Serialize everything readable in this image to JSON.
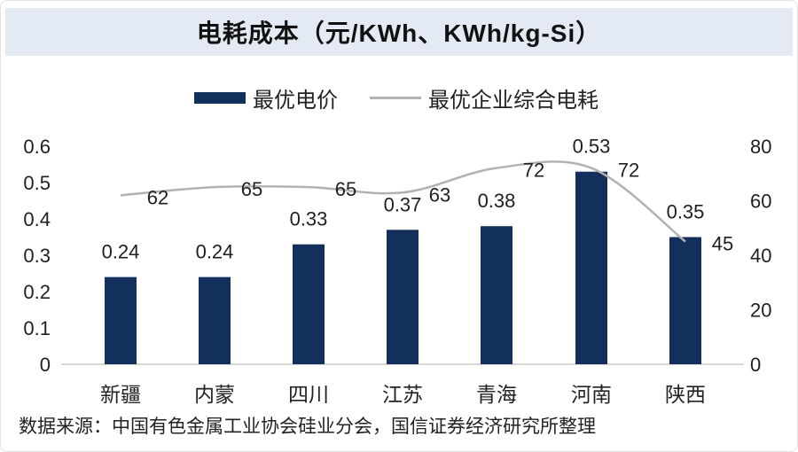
{
  "figure": {
    "title": "电耗成本（元/KWh、KWh/kg-Si）",
    "source_note": "数据来源：中国有色金属工业协会硅业分会，国信证券经济研究所整理"
  },
  "legend": [
    {
      "label": "最优电价",
      "marker": "bar-swatch",
      "color": "#13305c"
    },
    {
      "label": "最优企业综合电耗",
      "marker": "line-swatch",
      "color": "#b3b2b2"
    }
  ],
  "colors": {
    "bar": "#13305c",
    "line": "#b3b2b2",
    "title_band": "#e3eaf4",
    "axis_line": "#cccccc",
    "label_text": "#1f1f1f"
  },
  "chart_data": {
    "type": "bar",
    "title": "电耗成本（元/KWh、KWh/kg-Si）",
    "categories": [
      "新疆",
      "内蒙",
      "四川",
      "江苏",
      "青海",
      "河南",
      "陕西"
    ],
    "series": [
      {
        "name": "最优电价",
        "type": "bar",
        "axis": "left",
        "values": [
          0.24,
          0.24,
          0.33,
          0.37,
          0.38,
          0.53,
          0.35
        ]
      },
      {
        "name": "最优企业综合电耗",
        "type": "line",
        "axis": "right",
        "values": [
          62,
          65,
          65,
          63,
          72,
          72,
          45
        ]
      }
    ],
    "left_axis": {
      "min": 0,
      "max": 0.6,
      "ticks": [
        0.6,
        0.5,
        0.4,
        0.3,
        0.2,
        0.1,
        0
      ]
    },
    "right_axis": {
      "min": 0,
      "max": 80,
      "ticks": [
        80,
        60,
        40,
        20,
        0
      ]
    },
    "grid": false,
    "legend_position": "top",
    "data_labels": true
  }
}
